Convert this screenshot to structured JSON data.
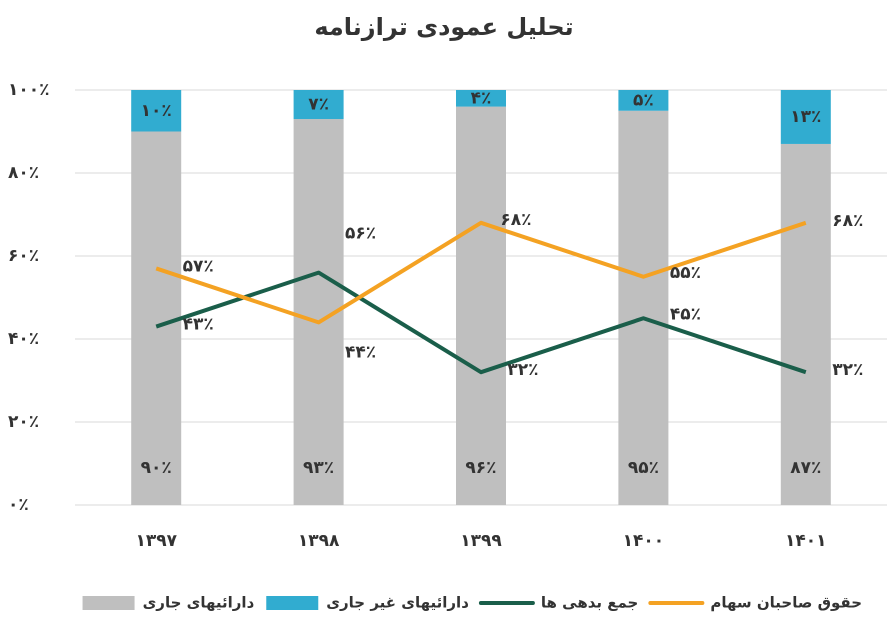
{
  "chart_data": {
    "type": "bar",
    "title": "تحلیل عمودی ترازنامه",
    "categories": [
      "۱۳۹۷",
      "۱۳۹۸",
      "۱۳۹۹",
      "۱۴۰۰",
      "۱۴۰۱"
    ],
    "stacked": true,
    "legend": "bottom",
    "grid": true,
    "ylim": [
      0,
      100
    ],
    "yticks": [
      {
        "value": 0,
        "label": "۰٪"
      },
      {
        "value": 20,
        "label": "۲۰٪"
      },
      {
        "value": 40,
        "label": "۴۰٪"
      },
      {
        "value": 60,
        "label": "۶۰٪"
      },
      {
        "value": 80,
        "label": "۸۰٪"
      },
      {
        "value": 100,
        "label": "۱۰۰٪"
      }
    ],
    "series": [
      {
        "name": "دارائیهای جاری",
        "type": "bar",
        "color": "#bfbfbf",
        "values": [
          90,
          93,
          96,
          95,
          87
        ],
        "value_labels": [
          "۹۰٪",
          "۹۳٪",
          "۹۶٪",
          "۹۵٪",
          "۸۷٪"
        ]
      },
      {
        "name": "دارائیهای غیر جاری",
        "type": "bar",
        "color": "#31acd0",
        "values": [
          10,
          7,
          4,
          5,
          13
        ],
        "value_labels": [
          "۱۰٪",
          "۷٪",
          "۴٪",
          "۵٪",
          "۱۳٪"
        ]
      },
      {
        "name": "جمع بدهی ها",
        "type": "line",
        "color": "#1a5e4a",
        "values": [
          43,
          56,
          32,
          45,
          32
        ],
        "value_labels": [
          "۴۳٪",
          "۵۶٪",
          "۳۲٪",
          "۴۵٪",
          "۳۲٪"
        ]
      },
      {
        "name": "حقوق صاحبان سهام",
        "type": "line",
        "color": "#f4a223",
        "values": [
          57,
          44,
          68,
          55,
          68
        ],
        "value_labels": [
          "۵۷٪",
          "۴۴٪",
          "۶۸٪",
          "۵۵٪",
          "۶۸٪"
        ]
      }
    ]
  }
}
